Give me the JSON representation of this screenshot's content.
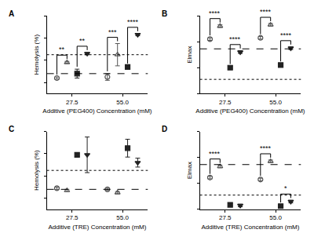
{
  "chart_data": [
    {
      "type": "scatter",
      "label": "A",
      "x_label": "Additive (PEG400) Concentration (mM)",
      "y_label": "Hemolysis (%)",
      "categories": [
        "27.5",
        "55.0"
      ],
      "ylim": [
        0.1,
        0.8
      ],
      "yticks": [
        0.2,
        0.4,
        0.6,
        0.8
      ],
      "tick_labels": "x",
      "grid": false,
      "series": [
        {
          "color": "#555555",
          "marker": "circle-open",
          "values": [
            0.24,
            0.25
          ],
          "errors": [
            0.01,
            0.03
          ]
        },
        {
          "color": "#555555",
          "marker": "triangle-up-open",
          "values": [
            0.38,
            0.45
          ],
          "errors": [
            0.01,
            0.1
          ]
        },
        {
          "color": "#222222",
          "marker": "square",
          "values": [
            0.28,
            0.34
          ],
          "errors": [
            0.04,
            0.01
          ]
        },
        {
          "color": "#222222",
          "marker": "triangle-down",
          "values": [
            0.46,
            0.63
          ],
          "errors": [
            0.01,
            0.01
          ]
        }
      ],
      "hlines": [
        {
          "value": 0.28,
          "line_style": "dashed"
        },
        {
          "value": 0.45,
          "line_style": "dotted"
        }
      ],
      "brackets": [
        {
          "category": 0,
          "series": [
            0,
            1
          ],
          "label": "**"
        },
        {
          "category": 0,
          "series": [
            2,
            3
          ],
          "label": "**"
        },
        {
          "category": 1,
          "series": [
            0,
            1
          ],
          "label": "***"
        },
        {
          "category": 1,
          "series": [
            2,
            3
          ],
          "label": "****"
        }
      ]
    },
    {
      "type": "scatter",
      "label": "B",
      "x_label": "Additive (PEG400) Concentration (mM)",
      "y_label": "Elmax",
      "categories": [
        "27.5",
        "55.0"
      ],
      "ylim": [
        0,
        0.6
      ],
      "yticks": [
        0,
        0.2,
        0.4,
        0.6
      ],
      "tick_labels": "x",
      "grid": false,
      "series": [
        {
          "color": "#555555",
          "marker": "circle-open",
          "values": [
            0.42,
            0.43
          ],
          "errors": [
            0.01,
            0.01
          ]
        },
        {
          "color": "#555555",
          "marker": "triangle-up-open",
          "values": [
            0.52,
            0.53
          ],
          "errors": [
            0.01,
            0.01
          ]
        },
        {
          "color": "#222222",
          "marker": "square",
          "values": [
            0.2,
            0.22
          ],
          "errors": [
            0.01,
            0.01
          ]
        },
        {
          "color": "#222222",
          "marker": "triangle-down",
          "values": [
            0.32,
            0.35
          ],
          "errors": [
            0.01,
            0.01
          ]
        }
      ],
      "hlines": [
        {
          "value": 0.345,
          "line_style": "dashed"
        },
        {
          "value": 0.11,
          "line_style": "dotted"
        }
      ],
      "brackets": [
        {
          "category": 0,
          "series": [
            0,
            1
          ],
          "label": "****"
        },
        {
          "category": 0,
          "series": [
            2,
            3
          ],
          "label": "****"
        },
        {
          "category": 1,
          "series": [
            0,
            1
          ],
          "label": "****"
        },
        {
          "category": 1,
          "series": [
            2,
            3
          ],
          "label": "****"
        }
      ]
    },
    {
      "type": "scatter",
      "label": "C",
      "x_label": "Additive (TRE) Concentration (mM)",
      "y_label": "Hemolysis (%)",
      "categories": [
        "27.5",
        "55.0"
      ],
      "ylim": [
        0.1,
        0.8
      ],
      "yticks": [
        0.2,
        0.4,
        0.6,
        0.8
      ],
      "tick_labels": "x",
      "grid": false,
      "series": [
        {
          "color": "#555555",
          "marker": "circle-open",
          "values": [
            0.29,
            0.28
          ],
          "errors": [
            0.01,
            0.01
          ]
        },
        {
          "color": "#555555",
          "marker": "triangle-up-open",
          "values": [
            0.27,
            0.25
          ],
          "errors": [
            0.01,
            0.01
          ]
        },
        {
          "color": "#222222",
          "marker": "square",
          "values": [
            0.59,
            0.65
          ],
          "errors": [
            0.015,
            0.08
          ]
        },
        {
          "color": "#222222",
          "marker": "triangle-down",
          "values": [
            0.59,
            0.52
          ],
          "errors": [
            0.16,
            0.04
          ]
        }
      ],
      "hlines": [
        {
          "value": 0.28,
          "line_style": "dashed"
        },
        {
          "value": 0.45,
          "line_style": "dotted"
        }
      ],
      "brackets": []
    },
    {
      "type": "scatter",
      "label": "D",
      "x_label": "Additive (TRE) Concentration (mM)",
      "y_label": "Elmax",
      "categories": [
        "27.5",
        "55.0"
      ],
      "ylim": [
        0,
        0.6
      ],
      "yticks": [
        0,
        0.2,
        0.4,
        0.6
      ],
      "tick_labels": "x",
      "grid": false,
      "series": [
        {
          "color": "#555555",
          "marker": "circle-open",
          "values": [
            0.245,
            0.23
          ],
          "errors": [
            0.01,
            0.01
          ]
        },
        {
          "color": "#555555",
          "marker": "triangle-up-open",
          "values": [
            0.33,
            0.37
          ],
          "errors": [
            0.01,
            0.01
          ]
        },
        {
          "color": "#222222",
          "marker": "square",
          "values": [
            0.035,
            0.025
          ],
          "errors": [
            0.01,
            0.01
          ]
        },
        {
          "color": "#222222",
          "marker": "triangle-down",
          "values": [
            0.03,
            0.06
          ],
          "errors": [
            0.01,
            0.01
          ]
        }
      ],
      "hlines": [
        {
          "value": 0.345,
          "line_style": "dashed"
        },
        {
          "value": 0.11,
          "line_style": "dotted"
        }
      ],
      "brackets": [
        {
          "category": 0,
          "series": [
            0,
            1
          ],
          "label": "****"
        },
        {
          "category": 1,
          "series": [
            0,
            1
          ],
          "label": "****"
        },
        {
          "category": 1,
          "series": [
            2,
            3
          ],
          "label": "*"
        }
      ]
    }
  ]
}
